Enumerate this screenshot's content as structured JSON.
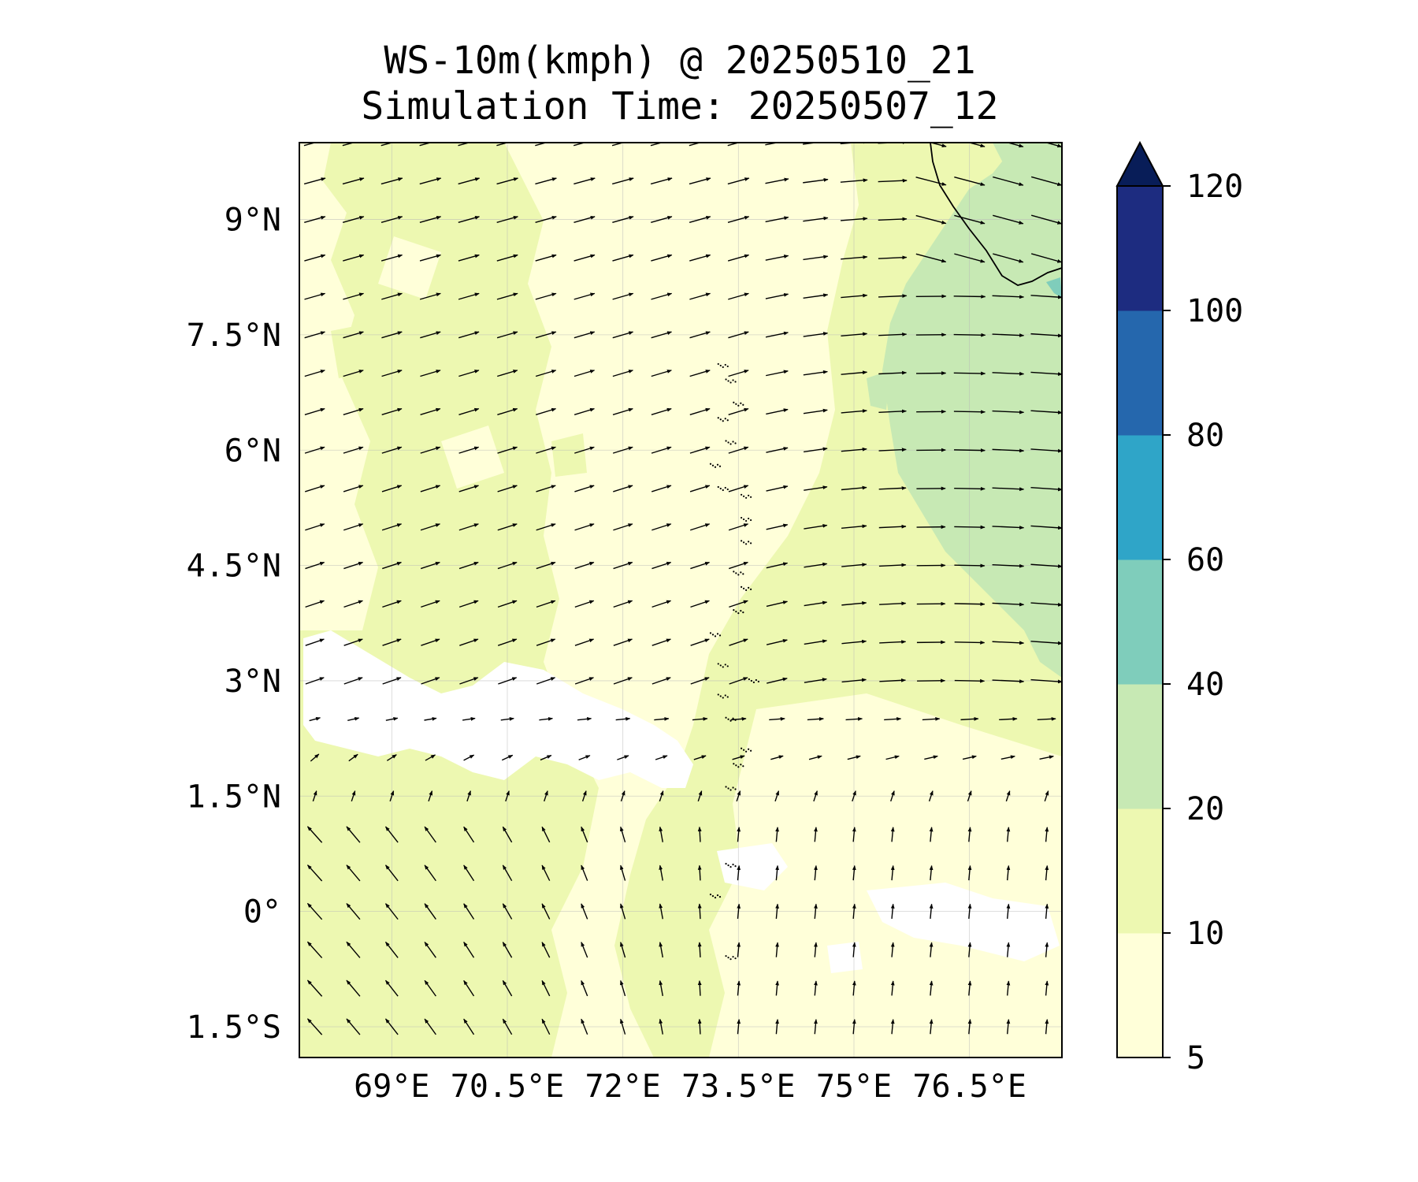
{
  "title": {
    "line1": "WS-10m(kmph) @ 20250510_21",
    "line2": "Simulation Time: 20250507_12"
  },
  "map": {
    "variable": "WS-10m(kmph)",
    "lat_range": [
      -1.9,
      10.0
    ],
    "lon_range": [
      67.8,
      77.7
    ],
    "lat_ticks": [
      {
        "value": 9.0,
        "label": "9°N"
      },
      {
        "value": 7.5,
        "label": "7.5°N"
      },
      {
        "value": 6.0,
        "label": "6°N"
      },
      {
        "value": 4.5,
        "label": "4.5°N"
      },
      {
        "value": 3.0,
        "label": "3°N"
      },
      {
        "value": 1.5,
        "label": "1.5°N"
      },
      {
        "value": 0.0,
        "label": "0°"
      },
      {
        "value": -1.5,
        "label": "1.5°S"
      }
    ],
    "lon_ticks": [
      {
        "value": 69.0,
        "label": "69°E"
      },
      {
        "value": 70.5,
        "label": "70.5°E"
      },
      {
        "value": 72.0,
        "label": "72°E"
      },
      {
        "value": 73.5,
        "label": "73.5°E"
      },
      {
        "value": 75.0,
        "label": "75°E"
      },
      {
        "value": 76.5,
        "label": "76.5°E"
      }
    ],
    "grid": true,
    "background_field": "wind speed filled contours (mostly 5–20 kmph, weak white patches near equator, 20–40 kmph band east of 75.5°E)",
    "vectors": "wind arrows on ~0.5° grid: westerly to northwesterly flow north of 3°N strengthening toward the east, weaker southeasterly-to-northwesterly flow south of 1.5°N"
  },
  "colorbar": {
    "levels": [
      5,
      10,
      20,
      40,
      60,
      80,
      100,
      120
    ],
    "tick_labels": [
      "5",
      "10",
      "20",
      "40",
      "60",
      "80",
      "100",
      "120"
    ],
    "colors": [
      "#ffffd9",
      "#edf8b1",
      "#c7e9b4",
      "#7fcdbb",
      "#2fa5c8",
      "#2567ad",
      "#1d2c80"
    ],
    "extend_color": "#081d58",
    "extend": "max"
  }
}
